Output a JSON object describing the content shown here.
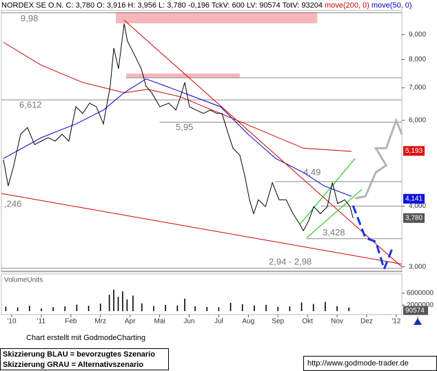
{
  "header": "NORDEX SE O.N. C: 3,780 O: 3,916 H: 3,956 L: 3,780 -0,196 TckV: 600 LV: 90574 TotV: 93204",
  "chart_data": [
    {
      "type": "line",
      "log_y": true,
      "xlim": [
        -1.35,
        12.19
      ],
      "ylim": [
        2.93,
        10.1
      ],
      "yticks": [
        {
          "value": 3,
          "label": "3,000"
        },
        {
          "value": 4,
          "label": "4,000"
        },
        {
          "value": 6,
          "label": "6,000"
        },
        {
          "value": 7,
          "label": "7,000"
        },
        {
          "value": 8,
          "label": "8,000"
        },
        {
          "value": 9,
          "label": "9,000"
        }
      ],
      "series": [
        {
          "color": "#000000",
          "last_value": 3.78,
          "last_label": "3,780",
          "box_color": "#555555",
          "x": [
            -1.28,
            -1.12,
            -0.93,
            -0.7,
            -0.47,
            -0.23,
            0,
            0.23,
            0.47,
            0.7,
            0.93,
            1.17,
            1.4,
            1.63,
            1.86,
            2.1,
            2.33,
            2.45,
            2.61,
            2.8,
            2.91,
            3.15,
            3.38,
            3.54,
            3.73,
            4.01,
            4.31,
            4.55,
            4.71,
            4.85,
            5.01,
            5.24,
            5.48,
            5.71,
            5.94,
            6.11,
            6.29,
            6.48,
            6.71,
            6.88,
            7.04,
            7.18,
            7.34,
            7.58,
            7.81,
            8.04,
            8.28,
            8.51,
            8.74,
            8.86,
            9.04,
            9.21,
            9.44,
            9.67,
            9.84,
            10.02,
            10.26,
            10.44,
            10.54
          ],
          "values": [
            4.98,
            4.4,
            4.85,
            5.62,
            5.8,
            5.35,
            5.44,
            5.53,
            5.44,
            5.62,
            5.44,
            6.4,
            6.2,
            6.51,
            6.4,
            5.9,
            7.06,
            8.45,
            7.66,
            9.48,
            8.74,
            8.18,
            7.66,
            7.06,
            6.84,
            6.4,
            6.51,
            6.3,
            6.72,
            7.18,
            6.4,
            6.3,
            6.2,
            6.3,
            6.2,
            6.2,
            5.71,
            5.26,
            5.09,
            4.62,
            4.12,
            3.86,
            4.12,
            3.99,
            4.47,
            4.12,
            4.12,
            3.86,
            3.67,
            3.56,
            3.73,
            3.99,
            3.86,
            3.99,
            4.47,
            4.05,
            4.12,
            3.99,
            3.78
          ]
        },
        {
          "name": "move(200, 0)",
          "color": "#cc0000",
          "last_value": 5.193,
          "last_label": "5,193",
          "box_color": "#dd1111",
          "x": [
            -1.28,
            0,
            1.4,
            2.8,
            3.61,
            4.66,
            6.06,
            7.46,
            8.86,
            10.49
          ],
          "values": [
            8.68,
            7.79,
            7.18,
            6.84,
            6.95,
            6.72,
            6.2,
            5.71,
            5.26,
            5.18
          ]
        },
        {
          "name": "move(50, 0)",
          "color": "#0000cc",
          "last_value": 4.141,
          "last_label": "4,141",
          "box_color": "#1111dd",
          "x": [
            -1.28,
            0,
            1.17,
            2.1,
            2.8,
            3.54,
            4.2,
            5.13,
            6.06,
            6.99,
            7.93,
            8.86,
            9.56,
            10.49
          ],
          "values": [
            5.01,
            5.53,
            5.9,
            6.3,
            6.84,
            7.3,
            7.06,
            6.72,
            6.4,
            5.62,
            5.01,
            4.69,
            4.4,
            4.19
          ]
        },
        {
          "color": "#1133ee",
          "dashed": true,
          "width": 3,
          "x": [
            10.54,
            10.96,
            11.31,
            11.59,
            11.89
          ],
          "values": [
            4.01,
            3.44,
            3.38,
            2.97,
            3.3
          ]
        },
        {
          "color": "#b4b4b4",
          "width": 3,
          "x": [
            10.61,
            10.96,
            11.31,
            11.66,
            11.31,
            11.66,
            12.0,
            12.19
          ],
          "values": [
            4.15,
            4.19,
            4.69,
            4.85,
            5.26,
            5.26,
            6.0,
            5.62
          ]
        },
        {
          "color": "#cc0000",
          "x": [
            2.8,
            12.19
          ],
          "values": [
            9.64,
            3.0
          ]
        },
        {
          "color": "#cc0000",
          "x": [
            -1.35,
            12.19
          ],
          "values": [
            4.246,
            3.04
          ]
        },
        {
          "color": "#00bb00",
          "x": [
            8.74,
            10.61
          ],
          "values": [
            3.67,
            5.01
          ]
        },
        {
          "color": "#00bb00",
          "x": [
            8.97,
            10.84
          ],
          "values": [
            3.44,
            4.33
          ]
        }
      ],
      "levels": [
        {
          "value": 9.98,
          "label": "9,98",
          "x_from": -1.35
        },
        {
          "value": 7.34,
          "x_from": 2.87
        },
        {
          "value": 6.612,
          "label": "6,612",
          "x_from": -1.35
        },
        {
          "value": 5.95,
          "label": "5,95",
          "x_from": 4.0
        },
        {
          "value": 4.49,
          "label": "4,49",
          "x_from": 7.9
        },
        {
          "value": 4.0,
          "x_from": 9.44
        },
        {
          "value": 3.428,
          "label": "3,428",
          "x_from": 8.97
        },
        {
          "value": 2.98,
          "x_from": -1.35
        },
        {
          "value": 2.94,
          "x_from": -1.35
        }
      ],
      "range_label": "2,94 - 2,98",
      "trend_label": ",246",
      "zones": [
        {
          "x": [
            2.52,
            9.33
          ],
          "y": [
            9.5,
            10.02
          ]
        },
        {
          "x": [
            2.87,
            6.71
          ],
          "y": [
            7.34,
            7.49
          ]
        }
      ]
    },
    {
      "type": "bar",
      "title": "VolumeUnits",
      "color": "#000000",
      "xlim": [
        -1.35,
        12.19
      ],
      "ylim": [
        0,
        12000000
      ],
      "yticks": [
        2000000,
        6000000
      ],
      "last_value": 90574,
      "xticks": [
        {
          "value": -1,
          "label": "'10"
        },
        {
          "value": 0,
          "label": "'11"
        },
        {
          "value": 1,
          "label": "Feb"
        },
        {
          "value": 2,
          "label": "Mrz"
        },
        {
          "value": 3,
          "label": "Apr"
        },
        {
          "value": 4,
          "label": "Mai"
        },
        {
          "value": 5,
          "label": "Jun"
        },
        {
          "value": 6,
          "label": "Jul"
        },
        {
          "value": 7,
          "label": "Aug"
        },
        {
          "value": 8,
          "label": "Sep"
        },
        {
          "value": 9,
          "label": "Okt"
        },
        {
          "value": 10,
          "label": "Nov"
        },
        {
          "value": 11,
          "label": "Dez"
        },
        {
          "value": 12,
          "label": "'12"
        }
      ],
      "x": [
        -1.2,
        -0.8,
        -0.4,
        0,
        0.4,
        0.8,
        1.2,
        1.6,
        2.0,
        2.3,
        2.45,
        2.6,
        2.75,
        2.9,
        3.1,
        3.4,
        3.8,
        4.2,
        4.6,
        4.85,
        5.2,
        5.6,
        6.0,
        6.4,
        6.8,
        7.2,
        7.6,
        8.0,
        8.4,
        8.8,
        9.2,
        9.6,
        10.0,
        10.4
      ],
      "values": [
        1500000,
        1200000,
        1800000,
        900000,
        1300000,
        1600000,
        2200000,
        1800000,
        2500000,
        5500000,
        7200000,
        4800000,
        6600000,
        3900000,
        5200000,
        2600000,
        1700000,
        2100000,
        1900000,
        4200000,
        1600000,
        1400000,
        1300000,
        2800000,
        2300000,
        1900000,
        2100000,
        1400000,
        1600000,
        2900000,
        2400000,
        3100000,
        1700000,
        1200000
      ]
    }
  ],
  "footer": {
    "credit": "Chart erstellt mit GodmodeCharting",
    "note_blue": "Skizzierung BLAU = bevorzugtes Szenario",
    "note_gray": "Skizzierung GRAU = Alternativszenario",
    "url": "http://www.godmode-trader.de"
  }
}
